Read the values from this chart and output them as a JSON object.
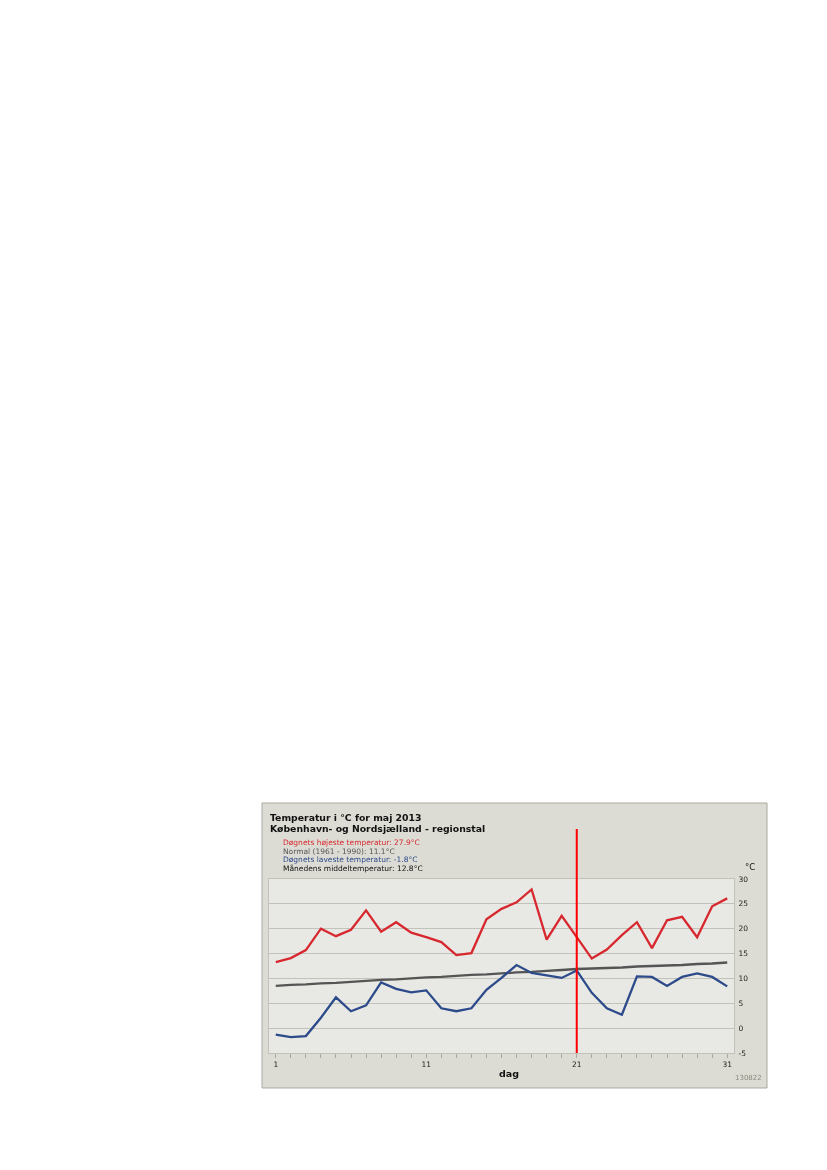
{
  "chart_data": {
    "type": "line",
    "title": "Temperatur i °C for maj 2013",
    "subtitle": "København- og Nordsjælland - regionstal",
    "xlabel": "dag",
    "ylabel": "°C",
    "x": [
      1,
      2,
      3,
      4,
      5,
      6,
      7,
      8,
      9,
      10,
      11,
      12,
      13,
      14,
      15,
      16,
      17,
      18,
      19,
      20,
      21,
      22,
      23,
      24,
      25,
      26,
      27,
      28,
      29,
      30,
      31
    ],
    "series": [
      {
        "name": "Døgnets højeste temperatur: 27.9°C",
        "color": "#d7282f",
        "values": [
          13.3,
          14.1,
          15.7,
          20.0,
          18.5,
          19.8,
          23.7,
          19.4,
          21.3,
          19.2,
          18.3,
          17.3,
          14.7,
          15.1,
          21.9,
          24.0,
          25.3,
          27.9,
          17.8,
          22.6,
          18.3,
          14.0,
          15.8,
          18.7,
          21.3,
          16.1,
          21.7,
          22.4,
          18.3,
          24.5,
          26.1
        ]
      },
      {
        "name": "Normal (1961 - 1990): 11.1°C",
        "color": "#555555",
        "values": [
          8.5,
          8.7,
          8.8,
          9.0,
          9.1,
          9.3,
          9.5,
          9.7,
          9.8,
          10.0,
          10.2,
          10.3,
          10.5,
          10.7,
          10.8,
          11.0,
          11.2,
          11.3,
          11.5,
          11.7,
          11.9,
          12.0,
          12.1,
          12.2,
          12.4,
          12.5,
          12.6,
          12.7,
          12.9,
          13.0,
          13.2
        ]
      },
      {
        "name": "Døgnets laveste temperatur: -1.8°C",
        "color": "#2d4a8a",
        "values": [
          -1.3,
          -1.8,
          -1.6,
          2.1,
          6.2,
          3.4,
          4.6,
          9.2,
          7.9,
          7.2,
          7.6,
          4.0,
          3.4,
          4.0,
          7.7,
          10.1,
          12.7,
          11.1,
          10.6,
          10.1,
          11.6,
          7.1,
          4.0,
          2.7,
          10.4,
          10.3,
          8.5,
          10.3,
          11.0,
          10.3,
          8.4
        ]
      }
    ],
    "xlim": [
      0.55,
      31.45
    ],
    "xticks": [
      1,
      {
        "value": 2,
        "label": null
      },
      {
        "value": 3,
        "label": null
      },
      {
        "value": 4,
        "label": null
      },
      {
        "value": 5,
        "label": null
      },
      {
        "value": 6,
        "label": null
      },
      {
        "value": 7,
        "label": null
      },
      {
        "value": 8,
        "label": null
      },
      {
        "value": 9,
        "label": null
      },
      {
        "value": 10,
        "label": null
      },
      11,
      {
        "value": 12,
        "label": null
      },
      {
        "value": 13,
        "label": null
      },
      {
        "value": 14,
        "label": null
      },
      {
        "value": 15,
        "label": null
      },
      {
        "value": 16,
        "label": null
      },
      {
        "value": 17,
        "label": null
      },
      {
        "value": 18,
        "label": null
      },
      {
        "value": 19,
        "label": null
      },
      {
        "value": 20,
        "label": null
      },
      21,
      {
        "value": 22,
        "label": null
      },
      {
        "value": 23,
        "label": null
      },
      {
        "value": 24,
        "label": null
      },
      {
        "value": 25,
        "label": null
      },
      {
        "value": 26,
        "label": null
      },
      {
        "value": 27,
        "label": null
      },
      {
        "value": 28,
        "label": null
      },
      {
        "value": 29,
        "label": null
      },
      {
        "value": 30,
        "label": null
      },
      31
    ],
    "ylim": [
      -5,
      30
    ],
    "yticks": [
      -5,
      0,
      5,
      10,
      15,
      20,
      25,
      30
    ],
    "grid": "y",
    "legend": "top left",
    "line_style": "solid",
    "ref_lines": [
      {
        "axis": "x",
        "value": 21,
        "color": "#ff0000"
      }
    ],
    "annotations": [
      "Månedens middeltemperatur: 12.8°C",
      "130822"
    ]
  }
}
